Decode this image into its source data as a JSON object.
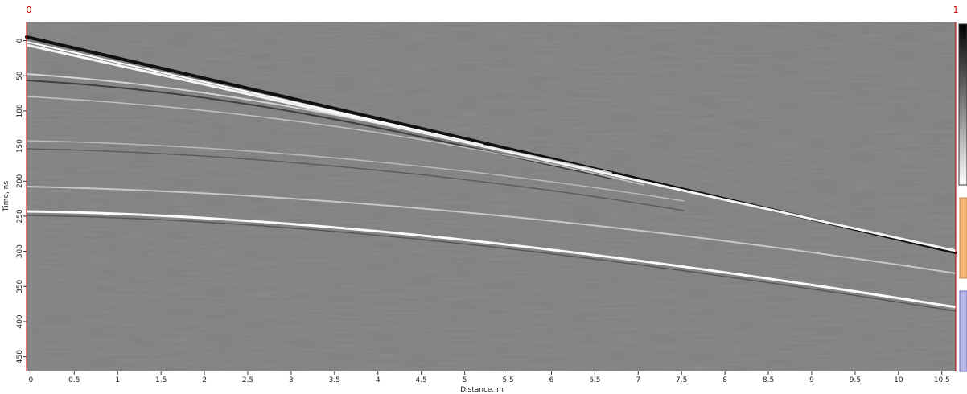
{
  "chart_data": {
    "type": "radargram",
    "x_label": "Distance, m",
    "y_label": "Time, ns",
    "range_markers": [
      "0",
      "1"
    ],
    "xlim": [
      -0.05,
      10.66
    ],
    "xticks": [
      0,
      0.5,
      1,
      1.5,
      2,
      2.5,
      3,
      3.5,
      4,
      4.5,
      5,
      5.5,
      6,
      6.5,
      7,
      7.5,
      8,
      8.5,
      9,
      9.5,
      10,
      10.5
    ],
    "ylim": [
      -27,
      471
    ],
    "yticks": [
      0,
      50,
      100,
      150,
      200,
      250,
      300,
      350,
      400,
      450
    ],
    "y_inverted": true
  }
}
